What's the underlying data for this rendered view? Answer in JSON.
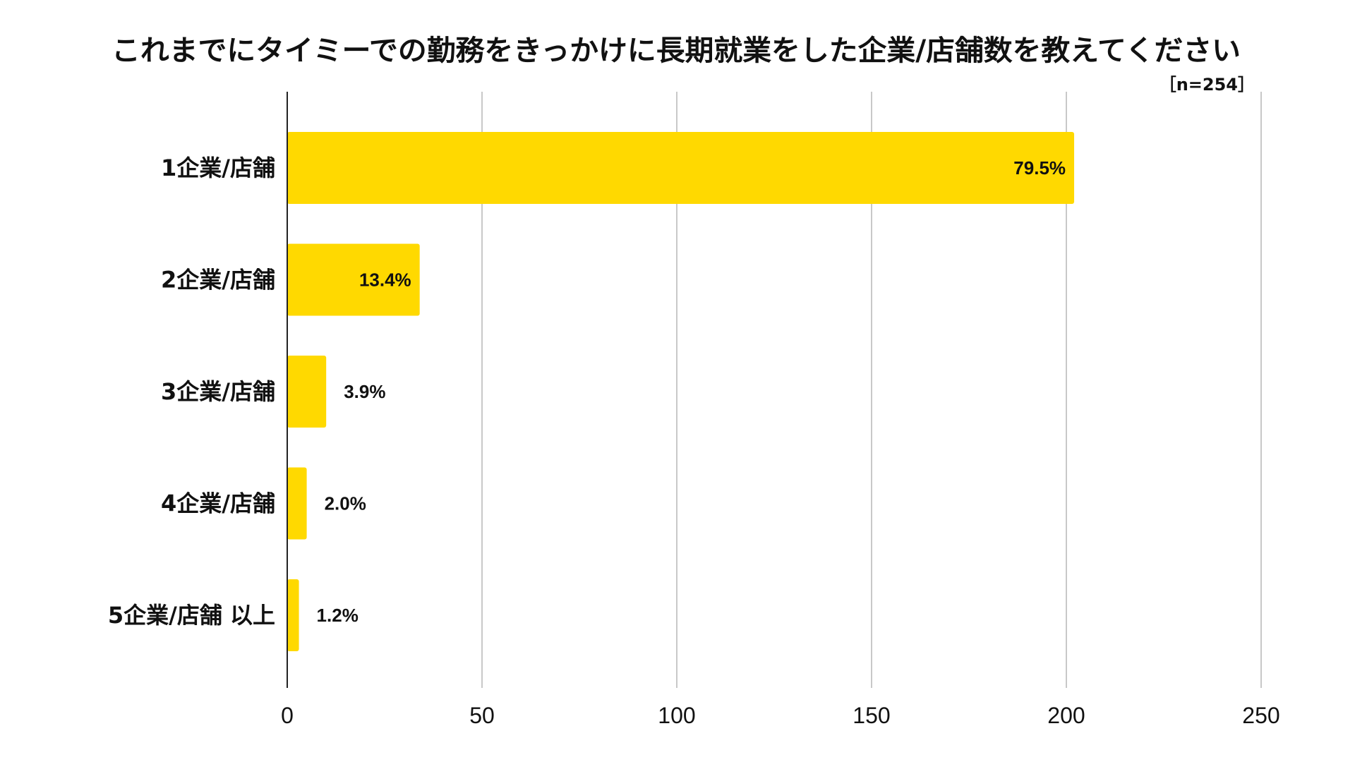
{
  "chart_data": {
    "type": "bar",
    "orientation": "horizontal",
    "title": "これまでにタイミーでの勤務をきっかけに長期就業をした企業/店舗数を教えてください",
    "sample_size": "［n=254］",
    "categories": [
      "1企業/店舗",
      "2企業/店舗",
      "3企業/店舗",
      "4企業/店舗",
      "5企業/店舗 以上"
    ],
    "values": [
      202,
      34,
      10,
      5,
      3
    ],
    "data_labels": [
      "79.5%",
      "13.4%",
      "3.9%",
      "2.0%",
      "1.2%"
    ],
    "xlim": [
      0,
      250
    ],
    "x_ticks": [
      0,
      50,
      100,
      150,
      200,
      250
    ],
    "grid": true,
    "legend": "none",
    "xlabel": "",
    "ylabel": "",
    "colors": {
      "bar": "#FFD900",
      "grid": "#C8C8C8",
      "axis": "#222222",
      "text": "#111111"
    }
  }
}
